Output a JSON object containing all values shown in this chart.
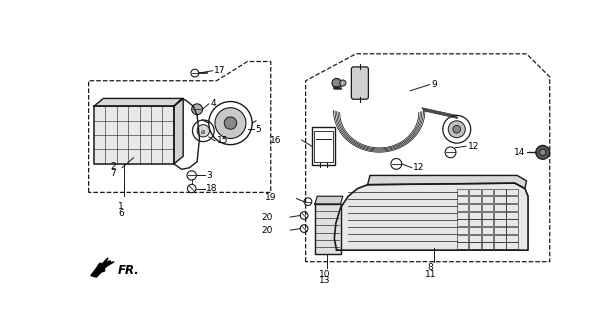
{
  "bg_color": "#ffffff",
  "line_color": "#1a1a1a",
  "fig_width": 6.16,
  "fig_height": 3.2,
  "dpi": 100,
  "label_fs": 6.5
}
